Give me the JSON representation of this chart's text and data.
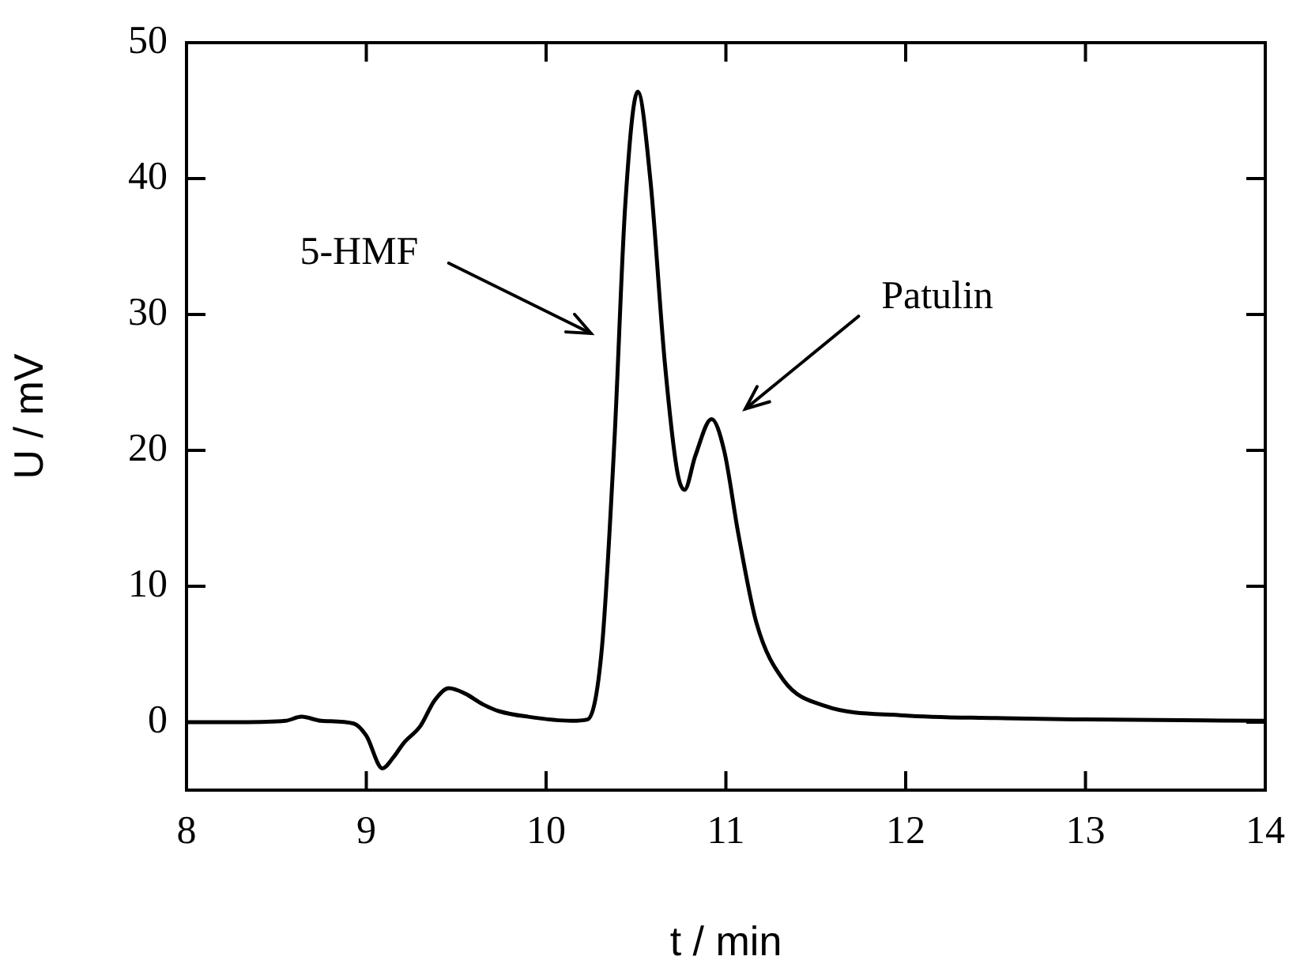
{
  "chart_data": {
    "type": "line",
    "xlabel": "t / min",
    "ylabel": "U / mV",
    "x": [
      8,
      8.3,
      8.55,
      8.64,
      8.75,
      8.93,
      9.0,
      9.09,
      9.15,
      9.21,
      9.3,
      9.38,
      9.46,
      9.55,
      9.65,
      9.74,
      9.9,
      10.14,
      10.23,
      10.31,
      10.38,
      10.44,
      10.51,
      10.58,
      10.66,
      10.73,
      10.77,
      10.83,
      10.92,
      10.99,
      11.07,
      11.17,
      11.32,
      11.55,
      11.99,
      12.5,
      13,
      14
    ],
    "series": [
      {
        "color": "#000000",
        "values": [
          0,
          0,
          0.1,
          0.4,
          0.1,
          -0.1,
          -1.0,
          -3.4,
          -2.6,
          -1.5,
          -0.3,
          1.6,
          2.5,
          2.1,
          1.3,
          0.8,
          0.4,
          0.1,
          0.2,
          5.4,
          20.7,
          38,
          46.4,
          39.9,
          26.5,
          18.4,
          17.1,
          19.6,
          22.3,
          20.0,
          13.8,
          7.3,
          3.1,
          1.2,
          0.5,
          0.3,
          0.2,
          0.1
        ]
      }
    ],
    "xlim": [
      8,
      14
    ],
    "xticks": [
      8,
      9,
      10,
      11,
      12,
      13,
      14
    ],
    "ylim": [
      -5,
      50
    ],
    "yticks": [
      0,
      10,
      20,
      30,
      40,
      50
    ],
    "grid": false,
    "legend": false,
    "marker": "none",
    "line_style": "solid",
    "annotations": [
      "5-HMF",
      "Patulin"
    ]
  }
}
